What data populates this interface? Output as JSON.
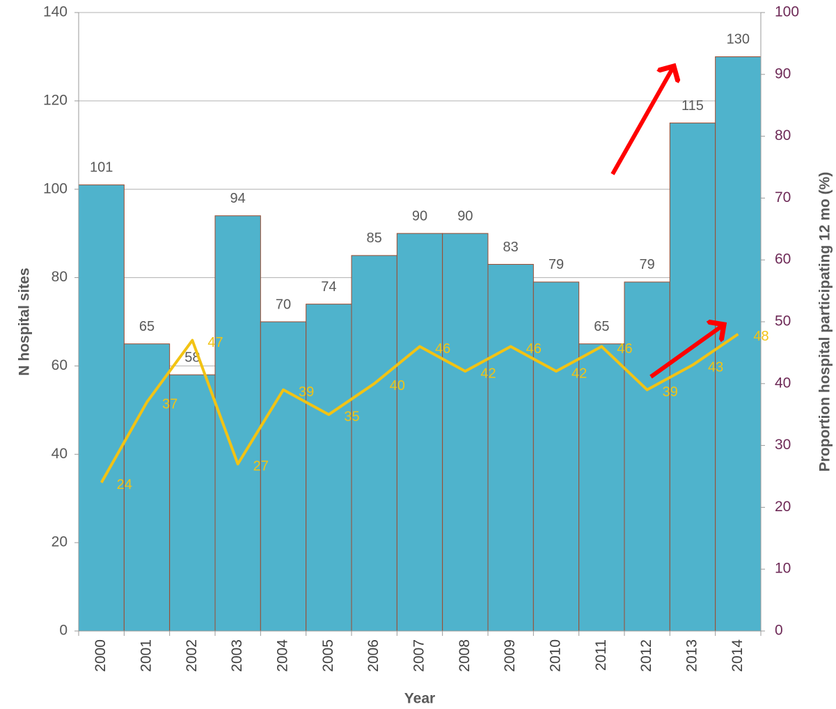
{
  "chart_data": {
    "type": "bar",
    "x_label": "Year",
    "y_label": "N hospital sites",
    "y2_label": "Proportion hospital participating 12 mo (%)",
    "categories": [
      "2000",
      "2001",
      "2002",
      "2003",
      "2004",
      "2005",
      "2006",
      "2007",
      "2008",
      "2009",
      "2010",
      "2011",
      "2012",
      "2013",
      "2014"
    ],
    "series": [
      {
        "type": "bar",
        "color": "#4fb3cc",
        "values": [
          101,
          65,
          58,
          94,
          70,
          74,
          85,
          90,
          90,
          83,
          79,
          65,
          79,
          115,
          130
        ]
      },
      {
        "type": "line",
        "axis": "y2",
        "color": "#f2c314",
        "values": [
          24,
          37,
          47,
          27,
          39,
          35,
          40,
          46,
          42,
          46,
          42,
          46,
          39,
          43,
          48
        ]
      }
    ],
    "ylim": [
      0,
      140
    ],
    "yticks": [
      0,
      20,
      40,
      60,
      80,
      100,
      120,
      140
    ],
    "y2lim": [
      0,
      100
    ],
    "y2ticks": [
      0,
      10,
      20,
      30,
      40,
      50,
      60,
      70,
      80,
      90,
      100
    ],
    "grid": true
  }
}
